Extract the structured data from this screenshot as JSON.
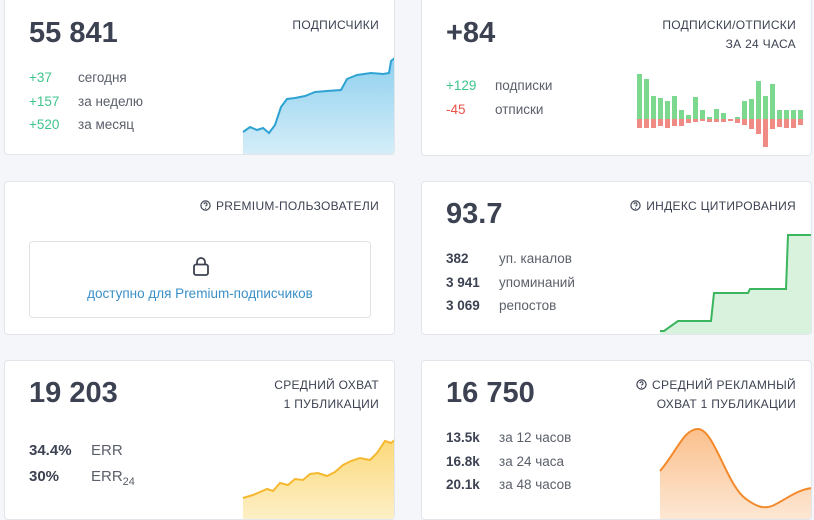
{
  "cards": [
    {
      "value": "55 841",
      "title": [
        "ПОДПИСЧИКИ"
      ],
      "stats": [
        {
          "value": "+37",
          "label": "сегодня"
        },
        {
          "value": "+157",
          "label": "за неделю"
        },
        {
          "value": "+520",
          "label": "за месяц"
        }
      ]
    },
    {
      "value": "+84",
      "title": [
        "ПОДПИСКИ/ОТПИСКИ",
        "ЗА 24 ЧАСА"
      ],
      "stats": [
        {
          "value": "+129",
          "label": "подписки"
        },
        {
          "value": "-45",
          "label": "отписки"
        }
      ]
    },
    {
      "title": [
        "PREMIUM-ПОЛЬЗОВАТЕЛИ"
      ],
      "link": "доступно для Premium-подписчиков"
    },
    {
      "value": "93.7",
      "title": [
        "ИНДЕКС ЦИТИРОВАНИЯ"
      ],
      "stats": [
        {
          "value": "382",
          "label": "уп. каналов"
        },
        {
          "value": "3 941",
          "label": "упоминаний"
        },
        {
          "value": "3 069",
          "label": "репостов"
        }
      ]
    },
    {
      "value": "19 203",
      "title": [
        "СРЕДНИЙ ОХВАТ",
        "1 ПУБЛИКАЦИИ"
      ],
      "stats": [
        {
          "value": "34.4%",
          "label": "ERR"
        },
        {
          "value": "30%",
          "label": "ERR",
          "sub": "24"
        }
      ]
    },
    {
      "value": "16 750",
      "title": [
        "СРЕДНИЙ РЕКЛАМНЫЙ",
        "ОХВАТ 1 ПУБЛИКАЦИИ"
      ],
      "stats": [
        {
          "value": "13.5k",
          "label": "за 12 часов"
        },
        {
          "value": "16.8k",
          "label": "за 24 часа"
        },
        {
          "value": "20.1k",
          "label": "за 48 часов"
        }
      ]
    }
  ]
}
